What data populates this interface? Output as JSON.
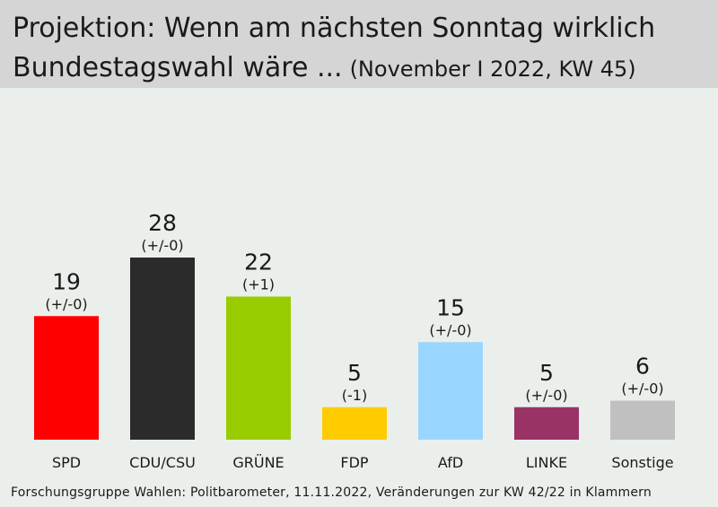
{
  "header": {
    "title_line1": "Projektion: Wenn am nächsten Sonntag wirklich",
    "title_line2": "Bundestagswahl wäre ...",
    "subtitle": "(November I 2022, KW 45)"
  },
  "footer": {
    "source": "Forschungsgruppe Wahlen: Politbarometer, 11.11.2022, Veränderungen zur KW 42/22 in Klammern"
  },
  "chart_data": {
    "type": "bar",
    "title": "Projektion: Wenn am nächsten Sonntag wirklich Bundestagswahl wäre ...",
    "subtitle": "(November I 2022, KW 45)",
    "categories": [
      "SPD",
      "CDU/CSU",
      "GRÜNE",
      "FDP",
      "AfD",
      "LINKE",
      "Sonstige"
    ],
    "values": [
      19,
      28,
      22,
      5,
      15,
      5,
      6
    ],
    "changes": [
      "(+/-0)",
      "(+/-0)",
      "(+1)",
      "(-1)",
      "(+/-0)",
      "(+/-0)",
      "(+/-0)"
    ],
    "colors": [
      "#ff0000",
      "#2b2b2b",
      "#99cc00",
      "#ffcc00",
      "#99d6ff",
      "#993366",
      "#c0c0c0"
    ],
    "xlabel": "",
    "ylabel": "",
    "ylim": [
      0,
      28
    ],
    "grid": false,
    "legend": "none"
  }
}
